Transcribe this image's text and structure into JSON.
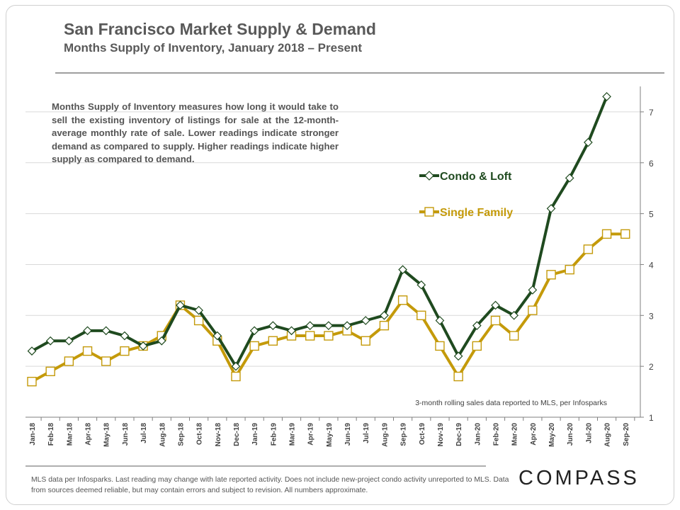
{
  "header": {
    "title": "San Francisco Market Supply & Demand",
    "subtitle": "Months Supply of Inventory, January 2018 – Present"
  },
  "description": "Months Supply of Inventory measures how long it would take to sell the existing inventory of listings for sale at the 12-month-average monthly rate of sale. Lower readings indicate stronger demand as compared to supply. Higher readings indicate higher supply as compared to demand.",
  "source_note": "3-month rolling sales data reported to MLS, per Infosparks",
  "footer": "MLS data per Infosparks. Last reading may change with late reported activity. Does not include new-project condo activity unreported to MLS. Data from sources deemed reliable, but may contain errors and subject to revision. All numbers approximate.",
  "logo": "COMPASS",
  "colors": {
    "condo": "#1f4a1f",
    "single": "#c49a0a",
    "grid": "#d9d9d9",
    "axis": "#7f7f7f"
  },
  "chart_data": {
    "type": "line",
    "title": "Months Supply of Inventory, January 2018 – Present",
    "ylim": [
      1,
      7.5
    ],
    "yticks": [
      1,
      2,
      3,
      4,
      5,
      6,
      7
    ],
    "categories": [
      "Jan-18",
      "Feb-18",
      "Mar-18",
      "Apr-18",
      "May-18",
      "Jun-18",
      "Jul-18",
      "Aug-18",
      "Sep-18",
      "Oct-18",
      "Nov-18",
      "Dec-18",
      "Jan-19",
      "Feb-19",
      "Mar-19",
      "Apr-19",
      "May-19",
      "Jun-19",
      "Jul-19",
      "Aug-19",
      "Sep-19",
      "Oct-19",
      "Nov-19",
      "Dec-19",
      "Jan-20",
      "Feb-20",
      "Mar-20",
      "Apr-20",
      "May-20",
      "Jun-20",
      "Jul-20",
      "Aug-20",
      "Sep-20"
    ],
    "series": [
      {
        "name": "Condo & Loft",
        "marker": "diamond",
        "values": [
          2.3,
          2.5,
          2.5,
          2.7,
          2.7,
          2.6,
          2.4,
          2.5,
          3.2,
          3.1,
          2.6,
          2.0,
          2.7,
          2.8,
          2.7,
          2.8,
          2.8,
          2.8,
          2.9,
          3.0,
          3.9,
          3.6,
          2.9,
          2.2,
          2.8,
          3.2,
          3.0,
          3.5,
          5.1,
          5.7,
          6.4,
          7.3,
          null
        ]
      },
      {
        "name": "Single Family",
        "marker": "square",
        "values": [
          1.7,
          1.9,
          2.1,
          2.3,
          2.1,
          2.3,
          2.4,
          2.6,
          3.2,
          2.9,
          2.5,
          1.8,
          2.4,
          2.5,
          2.6,
          2.6,
          2.6,
          2.7,
          2.5,
          2.8,
          3.3,
          3.0,
          2.4,
          1.8,
          2.4,
          2.9,
          2.6,
          3.1,
          3.8,
          3.9,
          4.3,
          4.6,
          4.6
        ]
      }
    ]
  }
}
